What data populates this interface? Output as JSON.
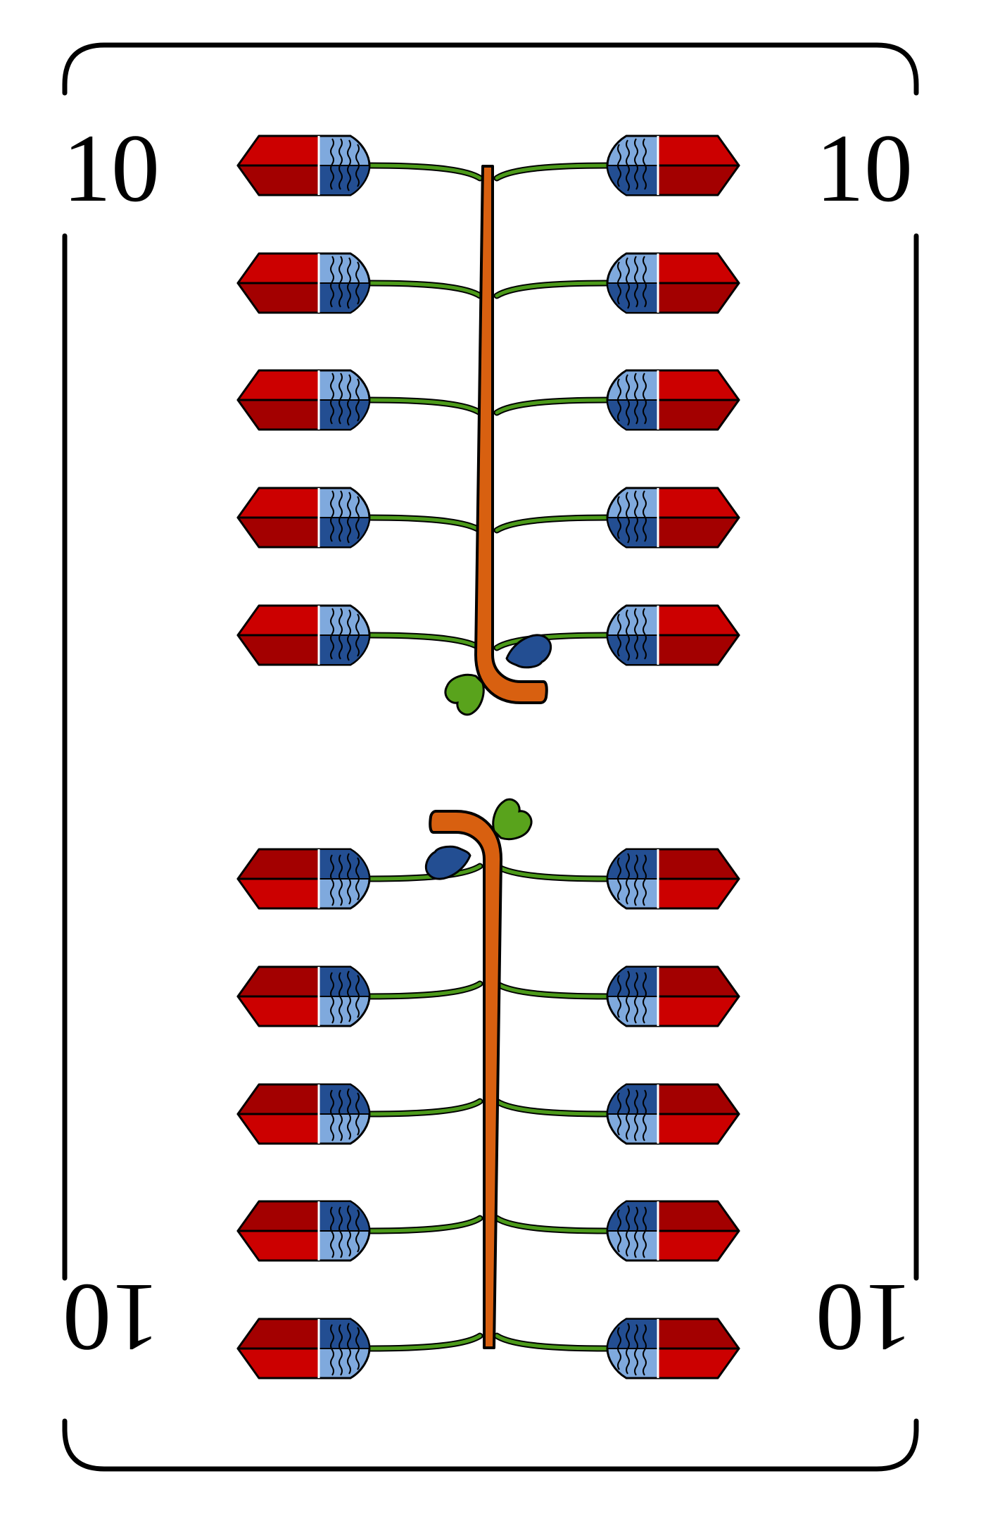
{
  "card": {
    "index_label": "10"
  },
  "colors": {
    "background": "#ffffff",
    "frame": "#000000",
    "crystal_red": "#cc0000",
    "crystal_dark_red": "#a30000",
    "cap_light_blue": "#7fa9dd",
    "cap_dark_blue": "#234e92",
    "stem_green": "#4c9a1a",
    "stick_orange": "#d86010",
    "leaf_green": "#59a31c",
    "leaf_blue": "#234e92"
  }
}
